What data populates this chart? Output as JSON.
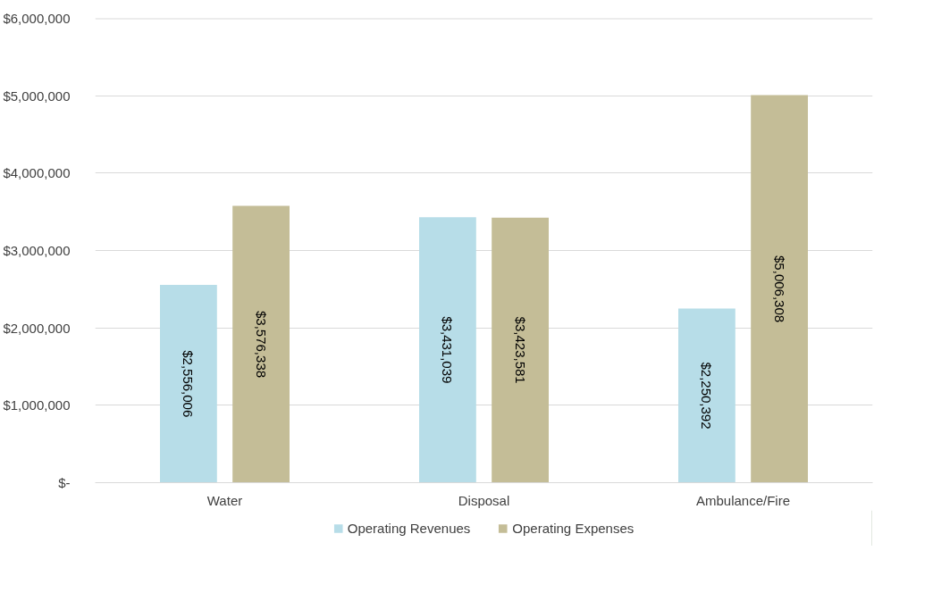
{
  "chart_data": {
    "type": "bar",
    "categories": [
      "Water",
      "Disposal",
      "Ambulance/Fire"
    ],
    "series": [
      {
        "name": "Operating Revenues",
        "color": "#b7dde8",
        "values": [
          2556006,
          3431039,
          2250392
        ],
        "value_labels": [
          "$2,556,006",
          "$3,431,039",
          "$2,250,392"
        ]
      },
      {
        "name": "Operating Expenses",
        "color": "#c4bd97",
        "values": [
          3576338,
          3423581,
          5006308
        ],
        "value_labels": [
          "$3,576,338",
          "$3,423,581",
          "$5,006,308"
        ]
      }
    ],
    "ylim": [
      0,
      6000000
    ],
    "yticks": [
      {
        "value": 0,
        "label": "$-"
      },
      {
        "value": 1000000,
        "label": "$1,000,000"
      },
      {
        "value": 2000000,
        "label": "$2,000,000"
      },
      {
        "value": 3000000,
        "label": "$3,000,000"
      },
      {
        "value": 4000000,
        "label": "$4,000,000"
      },
      {
        "value": 5000000,
        "label": "$5,000,000"
      },
      {
        "value": 6000000,
        "label": "$6,000,000"
      }
    ],
    "grid": "y",
    "legend": "bottom"
  }
}
